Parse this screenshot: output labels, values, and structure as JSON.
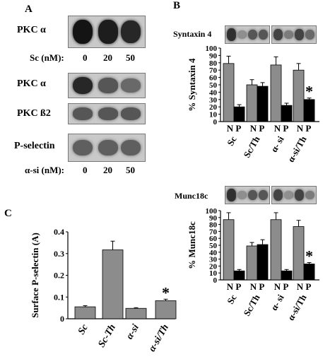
{
  "panel_a": {
    "letter": "A",
    "blot1": {
      "label": "PKC α",
      "intensities": [
        0.95,
        0.9,
        0.85
      ]
    },
    "sc_row": {
      "label": "Sc (nM):",
      "values": [
        "0",
        "20",
        "50"
      ]
    },
    "blot2": {
      "label": "PKC α",
      "intensities": [
        0.85,
        0.6,
        0.5
      ]
    },
    "blot3": {
      "label": "PKC ß2",
      "intensities": [
        0.6,
        0.6,
        0.6
      ]
    },
    "blot4": {
      "label": "P-selectin",
      "intensities": [
        0.55,
        0.55,
        0.55
      ]
    },
    "si_row": {
      "label": "α-si (nM):",
      "values": [
        "0",
        "20",
        "50"
      ]
    }
  },
  "panel_b": {
    "letter": "B",
    "blot_syntaxin_label": "Syntaxin 4",
    "blot_munc_label": "Munc18c",
    "syntaxin_lanes": [
      0.8,
      0.3,
      0.6,
      0.6,
      0.7,
      0.4,
      0.7,
      0.5
    ],
    "munc_lanes": [
      0.8,
      0.3,
      0.6,
      0.6,
      0.7,
      0.3,
      0.7,
      0.4
    ]
  },
  "panel_c": {
    "letter": "C"
  },
  "chart_data": [
    {
      "type": "bar",
      "panel": "B-top",
      "ylabel": "% Syntaxin 4",
      "ylim": [
        0,
        100
      ],
      "yticks": [
        0,
        10,
        20,
        30,
        40,
        50,
        60,
        70,
        80,
        90,
        100
      ],
      "categories": [
        "Sc",
        "Sc/Th",
        "α- si",
        "α-si/Th"
      ],
      "group_sublabel": "N P",
      "series": [
        {
          "values": [
            79,
            50,
            77,
            70
          ],
          "errors": [
            10,
            7,
            11,
            9
          ],
          "color": "#8c8c8c"
        },
        {
          "values": [
            20,
            48,
            22,
            30
          ],
          "errors": [
            3,
            5,
            3,
            2
          ],
          "color": "#000000"
        }
      ],
      "annotation": {
        "text": "*",
        "category": "α-si/Th"
      }
    },
    {
      "type": "bar",
      "panel": "B-bottom",
      "ylabel": "% Munc18c",
      "ylim": [
        0,
        100
      ],
      "yticks": [
        0,
        10,
        20,
        30,
        40,
        50,
        60,
        70,
        80,
        90,
        100
      ],
      "categories": [
        "Sc",
        "Sc/Th",
        "α- si",
        "α-si/Th"
      ],
      "group_sublabel": "N P",
      "series": [
        {
          "values": [
            87,
            49,
            87,
            77
          ],
          "errors": [
            10,
            5,
            10,
            9
          ],
          "color": "#8c8c8c"
        },
        {
          "values": [
            13,
            51,
            13,
            23
          ],
          "errors": [
            2,
            7,
            2,
            2
          ],
          "color": "#000000"
        }
      ],
      "annotation": {
        "text": "*",
        "category": "α-si/Th"
      }
    },
    {
      "type": "bar",
      "panel": "C",
      "ylabel": "Surface P-selectin (A)",
      "ylim": [
        0,
        0.4
      ],
      "yticks": [
        0,
        0.1,
        0.2,
        0.3,
        0.4
      ],
      "categories": [
        "Sc",
        "Sc-Th",
        "α-si",
        "α-si/Th"
      ],
      "series": [
        {
          "values": [
            0.055,
            0.317,
            0.048,
            0.083
          ],
          "errors": [
            0.005,
            0.04,
            0.003,
            0.007
          ],
          "color": "#8c8c8c"
        }
      ],
      "annotation": {
        "text": "*",
        "category": "α-si/Th"
      }
    }
  ]
}
